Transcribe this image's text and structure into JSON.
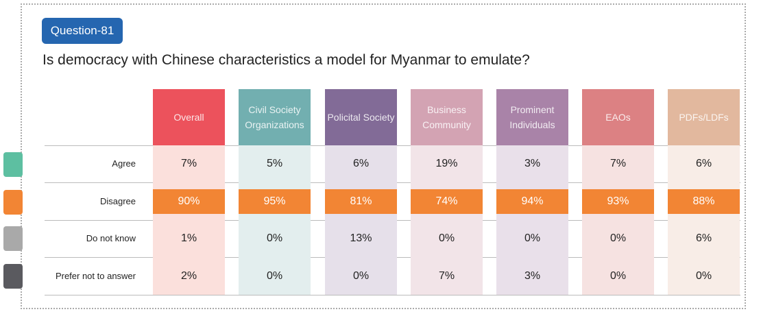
{
  "badge": "Question-81",
  "title": "Is democracy with Chinese characteristics a model for Myanmar to emulate?",
  "chart_data": {
    "type": "table",
    "title": "Is democracy with Chinese characteristics a model for Myanmar to emulate?",
    "rows": [
      "Agree",
      "Disagree",
      "Do not know",
      "Prefer not to answer"
    ],
    "row_colors": [
      "#5dbfa1",
      "#f28534",
      "#a9a9a9",
      "#5a5a5f"
    ],
    "columns": [
      {
        "name": "Overall",
        "color": "#ec525c",
        "tint": "#fbe0dc",
        "values": [
          "7%",
          "90%",
          "1%",
          "2%"
        ]
      },
      {
        "name": "Civil Society Organizations",
        "color": "#72afb0",
        "tint": "#e3eeee",
        "values": [
          "5%",
          "95%",
          "0%",
          "0%"
        ]
      },
      {
        "name": "Policital Society",
        "color": "#826b97",
        "tint": "#e6e0ea",
        "values": [
          "6%",
          "81%",
          "13%",
          "0%"
        ]
      },
      {
        "name": "Business Community",
        "color": "#d3a3b3",
        "tint": "#f2e4e8",
        "values": [
          "19%",
          "74%",
          "0%",
          "7%"
        ]
      },
      {
        "name": "Prominent Individuals",
        "color": "#a983a8",
        "tint": "#e9e0ea",
        "values": [
          "3%",
          "94%",
          "0%",
          "3%"
        ]
      },
      {
        "name": "EAOs",
        "color": "#dc8183",
        "tint": "#f6e2e1",
        "values": [
          "7%",
          "93%",
          "0%",
          "0%"
        ]
      },
      {
        "name": "PDFs/LDFs",
        "color": "#e2b89e",
        "tint": "#f8ede7",
        "values": [
          "6%",
          "88%",
          "6%",
          "0%"
        ]
      }
    ]
  }
}
